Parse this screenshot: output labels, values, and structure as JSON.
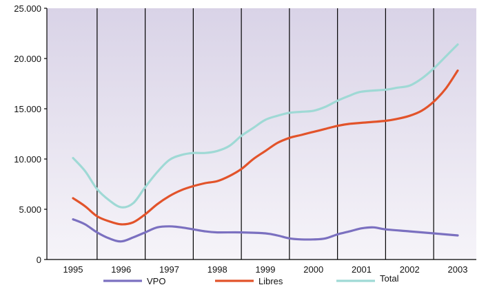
{
  "chart_data": {
    "type": "line",
    "x_tick_labels": [
      "1995",
      "1996",
      "1997",
      "1998",
      "1999",
      "2000",
      "2001",
      "2002",
      "2003"
    ],
    "y_tick_labels": [
      "0",
      "5.000",
      "10.000",
      "15.000",
      "20.000",
      "25.000"
    ],
    "y_ticks": [
      0,
      5000,
      10000,
      15000,
      20000,
      25000
    ],
    "ylim": [
      0,
      25000
    ],
    "xlim": [
      1995,
      2003
    ],
    "grid": "vertical lines between years",
    "legend": "bottom",
    "background": "light lavender gradient",
    "series": [
      {
        "name": "VPO",
        "color": "#7b70c0",
        "points": [
          [
            1995,
            4000
          ],
          [
            1995.25,
            3500
          ],
          [
            1995.5,
            2700
          ],
          [
            1995.75,
            2100
          ],
          [
            1996,
            1800
          ],
          [
            1996.25,
            2200
          ],
          [
            1996.5,
            2700
          ],
          [
            1996.75,
            3200
          ],
          [
            1997,
            3300
          ],
          [
            1997.25,
            3200
          ],
          [
            1997.5,
            3000
          ],
          [
            1997.75,
            2800
          ],
          [
            1998,
            2700
          ],
          [
            1998.5,
            2700
          ],
          [
            1999,
            2600
          ],
          [
            1999.25,
            2400
          ],
          [
            1999.5,
            2100
          ],
          [
            1999.75,
            2000
          ],
          [
            2000,
            2000
          ],
          [
            2000.25,
            2100
          ],
          [
            2000.5,
            2500
          ],
          [
            2000.75,
            2800
          ],
          [
            2001,
            3100
          ],
          [
            2001.25,
            3200
          ],
          [
            2001.5,
            3000
          ],
          [
            2002,
            2800
          ],
          [
            2002.5,
            2600
          ],
          [
            2003,
            2400
          ]
        ]
      },
      {
        "name": "Libres",
        "color": "#e2532a",
        "points": [
          [
            1995,
            6100
          ],
          [
            1995.25,
            5300
          ],
          [
            1995.5,
            4300
          ],
          [
            1995.75,
            3800
          ],
          [
            1996,
            3500
          ],
          [
            1996.25,
            3700
          ],
          [
            1996.5,
            4500
          ],
          [
            1996.75,
            5500
          ],
          [
            1997,
            6300
          ],
          [
            1997.25,
            6900
          ],
          [
            1997.5,
            7300
          ],
          [
            1997.75,
            7600
          ],
          [
            1998,
            7800
          ],
          [
            1998.25,
            8300
          ],
          [
            1998.5,
            9000
          ],
          [
            1998.75,
            10000
          ],
          [
            1999,
            10800
          ],
          [
            1999.25,
            11600
          ],
          [
            1999.5,
            12100
          ],
          [
            1999.75,
            12400
          ],
          [
            2000,
            12700
          ],
          [
            2000.25,
            13000
          ],
          [
            2000.5,
            13300
          ],
          [
            2000.75,
            13500
          ],
          [
            2001,
            13600
          ],
          [
            2001.5,
            13800
          ],
          [
            2001.75,
            14000
          ],
          [
            2002,
            14300
          ],
          [
            2002.25,
            14800
          ],
          [
            2002.5,
            15700
          ],
          [
            2002.75,
            17000
          ],
          [
            2003,
            18800
          ]
        ]
      },
      {
        "name": "Total",
        "color": "#9fd9d5",
        "points": [
          [
            1995,
            10100
          ],
          [
            1995.25,
            8800
          ],
          [
            1995.5,
            7000
          ],
          [
            1995.75,
            5900
          ],
          [
            1996,
            5200
          ],
          [
            1996.25,
            5600
          ],
          [
            1996.5,
            7200
          ],
          [
            1996.75,
            8700
          ],
          [
            1997,
            9900
          ],
          [
            1997.25,
            10400
          ],
          [
            1997.5,
            10600
          ],
          [
            1997.75,
            10600
          ],
          [
            1998,
            10800
          ],
          [
            1998.25,
            11300
          ],
          [
            1998.5,
            12300
          ],
          [
            1998.75,
            13100
          ],
          [
            1999,
            13900
          ],
          [
            1999.25,
            14300
          ],
          [
            1999.5,
            14600
          ],
          [
            1999.75,
            14700
          ],
          [
            2000,
            14800
          ],
          [
            2000.25,
            15200
          ],
          [
            2000.5,
            15800
          ],
          [
            2000.75,
            16300
          ],
          [
            2001,
            16700
          ],
          [
            2001.5,
            16900
          ],
          [
            2001.75,
            17100
          ],
          [
            2002,
            17300
          ],
          [
            2002.25,
            18000
          ],
          [
            2002.5,
            19000
          ],
          [
            2002.75,
            20200
          ],
          [
            2003,
            21400
          ]
        ]
      }
    ]
  }
}
